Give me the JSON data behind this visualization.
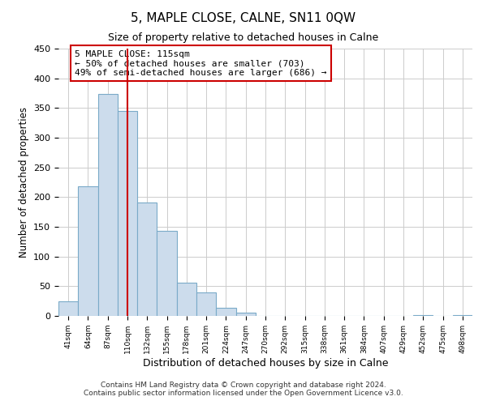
{
  "title": "5, MAPLE CLOSE, CALNE, SN11 0QW",
  "subtitle": "Size of property relative to detached houses in Calne",
  "xlabel": "Distribution of detached houses by size in Calne",
  "ylabel": "Number of detached properties",
  "bar_values": [
    24,
    218,
    373,
    345,
    191,
    143,
    56,
    40,
    14,
    6,
    0,
    0,
    0,
    0,
    0,
    0,
    0,
    0,
    1,
    0,
    1
  ],
  "tick_labels": [
    "41sqm",
    "64sqm",
    "87sqm",
    "110sqm",
    "132sqm",
    "155sqm",
    "178sqm",
    "201sqm",
    "224sqm",
    "247sqm",
    "270sqm",
    "292sqm",
    "315sqm",
    "338sqm",
    "361sqm",
    "384sqm",
    "407sqm",
    "429sqm",
    "452sqm",
    "475sqm",
    "498sqm"
  ],
  "bar_width": 1,
  "bar_color": "#ccdcec",
  "bar_edge_color": "#7aaac8",
  "vline_x": 3.5,
  "vline_color": "#cc0000",
  "ylim": [
    0,
    450
  ],
  "yticks": [
    0,
    50,
    100,
    150,
    200,
    250,
    300,
    350,
    400,
    450
  ],
  "annotation_text": "5 MAPLE CLOSE: 115sqm\n← 50% of detached houses are smaller (703)\n49% of semi-detached houses are larger (686) →",
  "annotation_box_color": "#ffffff",
  "annotation_box_edge": "#cc0000",
  "footer_line1": "Contains HM Land Registry data © Crown copyright and database right 2024.",
  "footer_line2": "Contains public sector information licensed under the Open Government Licence v3.0.",
  "background_color": "#ffffff",
  "grid_color": "#cccccc"
}
